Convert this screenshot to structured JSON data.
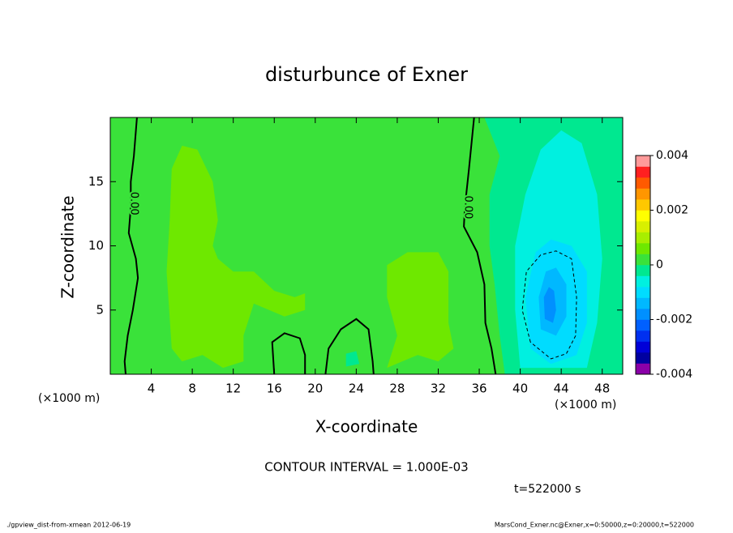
{
  "chart_data": {
    "type": "contour",
    "title": "disturbunce of Exner",
    "x_label": "X-coordinate",
    "y_label": "Z-coordinate",
    "x_unit": "(×1000 m)",
    "y_unit": "(×1000 m)",
    "xlim": [
      0,
      50
    ],
    "ylim": [
      0,
      20
    ],
    "xticks": [
      4,
      8,
      12,
      16,
      20,
      24,
      28,
      32,
      36,
      40,
      44,
      48
    ],
    "yticks": [
      5,
      10,
      15
    ],
    "background_level": 0.0002,
    "colorbar": {
      "lim": [
        -0.004,
        0.004
      ],
      "ticks": [
        -0.004,
        -0.002,
        0,
        0.002,
        0.004
      ],
      "colors": [
        "#8a00a8",
        "#0000a0",
        "#0000d8",
        "#0030f0",
        "#0060ff",
        "#0090ff",
        "#00b8ff",
        "#00dcff",
        "#00f0e0",
        "#00e890",
        "#3ae23a",
        "#6ee800",
        "#a8ee00",
        "#d8f000",
        "#ffff00",
        "#ffc800",
        "#ff9600",
        "#ff5a00",
        "#ff2020",
        "#ff9a9a"
      ]
    },
    "regions": [
      {
        "level": 0.0006,
        "points": [
          [
            6,
            2
          ],
          [
            5.5,
            8
          ],
          [
            5.8,
            12
          ],
          [
            6,
            16
          ],
          [
            7,
            17.8
          ],
          [
            8.5,
            17.5
          ],
          [
            10,
            15
          ],
          [
            10.5,
            12
          ],
          [
            10,
            10
          ],
          [
            10.5,
            9
          ],
          [
            12,
            8
          ],
          [
            14,
            8
          ],
          [
            16,
            6.5
          ],
          [
            18,
            6
          ],
          [
            19,
            6.3
          ],
          [
            19,
            5
          ],
          [
            17,
            4.5
          ],
          [
            14,
            5.5
          ],
          [
            13,
            3
          ],
          [
            13,
            1
          ],
          [
            11,
            0.5
          ],
          [
            9,
            1.5
          ],
          [
            7,
            1
          ]
        ]
      },
      {
        "level": 0.0006,
        "points": [
          [
            27,
            0.5
          ],
          [
            28,
            3
          ],
          [
            27,
            6
          ],
          [
            27,
            8.5
          ],
          [
            29,
            9.5
          ],
          [
            32,
            9.5
          ],
          [
            33,
            8
          ],
          [
            33,
            4
          ],
          [
            33.5,
            2
          ],
          [
            32,
            1
          ],
          [
            30,
            1.5
          ]
        ]
      },
      {
        "level": -0.0002,
        "points": [
          [
            23,
            0.6
          ],
          [
            23,
            1.6
          ],
          [
            24,
            1.8
          ],
          [
            24.3,
            0.8
          ]
        ]
      },
      {
        "level": -0.0002,
        "points": [
          [
            36.5,
            20
          ],
          [
            50,
            20
          ],
          [
            50,
            0
          ],
          [
            38.5,
            0
          ],
          [
            38,
            3
          ],
          [
            37.5,
            7
          ],
          [
            37,
            10
          ],
          [
            37,
            14
          ],
          [
            38,
            17
          ]
        ]
      },
      {
        "level": -0.0006,
        "points": [
          [
            40,
            0.5
          ],
          [
            39.5,
            5
          ],
          [
            39.5,
            10
          ],
          [
            40.5,
            14
          ],
          [
            42,
            17.5
          ],
          [
            44,
            19
          ],
          [
            46,
            18
          ],
          [
            47.5,
            14
          ],
          [
            48,
            9
          ],
          [
            47.5,
            4
          ],
          [
            46.5,
            0.5
          ]
        ]
      },
      {
        "level": -0.001,
        "points": [
          [
            41,
            2
          ],
          [
            40.5,
            6
          ],
          [
            41.5,
            9.5
          ],
          [
            43,
            10.5
          ],
          [
            45,
            10
          ],
          [
            46.5,
            8
          ],
          [
            46.5,
            4
          ],
          [
            45.5,
            1.5
          ],
          [
            43,
            0.8
          ]
        ]
      },
      {
        "level": -0.0014,
        "points": [
          [
            42,
            3.5
          ],
          [
            41.8,
            6
          ],
          [
            42.5,
            8
          ],
          [
            43.5,
            8.3
          ],
          [
            44.5,
            7
          ],
          [
            44.5,
            4.5
          ],
          [
            43.5,
            3
          ]
        ]
      },
      {
        "level": -0.0018,
        "points": [
          [
            42.4,
            4.3
          ],
          [
            42.3,
            6
          ],
          [
            42.8,
            6.8
          ],
          [
            43.3,
            6.5
          ],
          [
            43.5,
            5
          ],
          [
            43.2,
            4
          ]
        ]
      }
    ],
    "contours": [
      {
        "level": 0,
        "label": "0.00",
        "label_at": [
          2.3,
          13.3
        ],
        "points": [
          [
            2.6,
            20
          ],
          [
            2.3,
            17
          ],
          [
            2,
            15
          ],
          [
            2,
            13
          ],
          [
            1.8,
            11
          ],
          [
            2.5,
            9
          ],
          [
            2.7,
            7.5
          ],
          [
            2.2,
            5
          ],
          [
            1.7,
            3
          ],
          [
            1.4,
            1
          ],
          [
            1.5,
            0
          ]
        ]
      },
      {
        "level": 0,
        "label": "0.00",
        "label_at": [
          34.9,
          13
        ],
        "points": [
          [
            35.5,
            20
          ],
          [
            35,
            16
          ],
          [
            34.6,
            13
          ],
          [
            34.5,
            11.5
          ],
          [
            35.8,
            9.5
          ],
          [
            36.5,
            7
          ],
          [
            36.6,
            4
          ],
          [
            37.2,
            2
          ],
          [
            37.6,
            0
          ]
        ]
      },
      {
        "level": 0,
        "points": [
          [
            16,
            0
          ],
          [
            15.8,
            2.5
          ],
          [
            17,
            3.2
          ],
          [
            18.5,
            2.8
          ],
          [
            19,
            1.5
          ],
          [
            19,
            0
          ]
        ]
      },
      {
        "level": 0,
        "points": [
          [
            21,
            0
          ],
          [
            21.3,
            2
          ],
          [
            22.5,
            3.5
          ],
          [
            24,
            4.3
          ],
          [
            25.2,
            3.5
          ],
          [
            25.6,
            1
          ],
          [
            25.7,
            0
          ]
        ]
      },
      {
        "level": -0.001,
        "points": [
          [
            41,
            2.5
          ],
          [
            40.2,
            5
          ],
          [
            40.6,
            8
          ],
          [
            42,
            9.3
          ],
          [
            43.5,
            9.6
          ],
          [
            45,
            9
          ],
          [
            45.5,
            6
          ],
          [
            45.4,
            3
          ],
          [
            44.5,
            1.6
          ],
          [
            43,
            1.2
          ],
          [
            41,
            2.5
          ]
        ]
      }
    ],
    "annotation": "CONTOUR INTERVAL = 1.000E-03",
    "time_label": "t=522000 s",
    "footer_left": "./gpview_dist-from-xmean  2012-06-19",
    "footer_right": "MarsCond_Exner.nc@Exner,x=0:50000,z=0:20000,t=522000"
  }
}
